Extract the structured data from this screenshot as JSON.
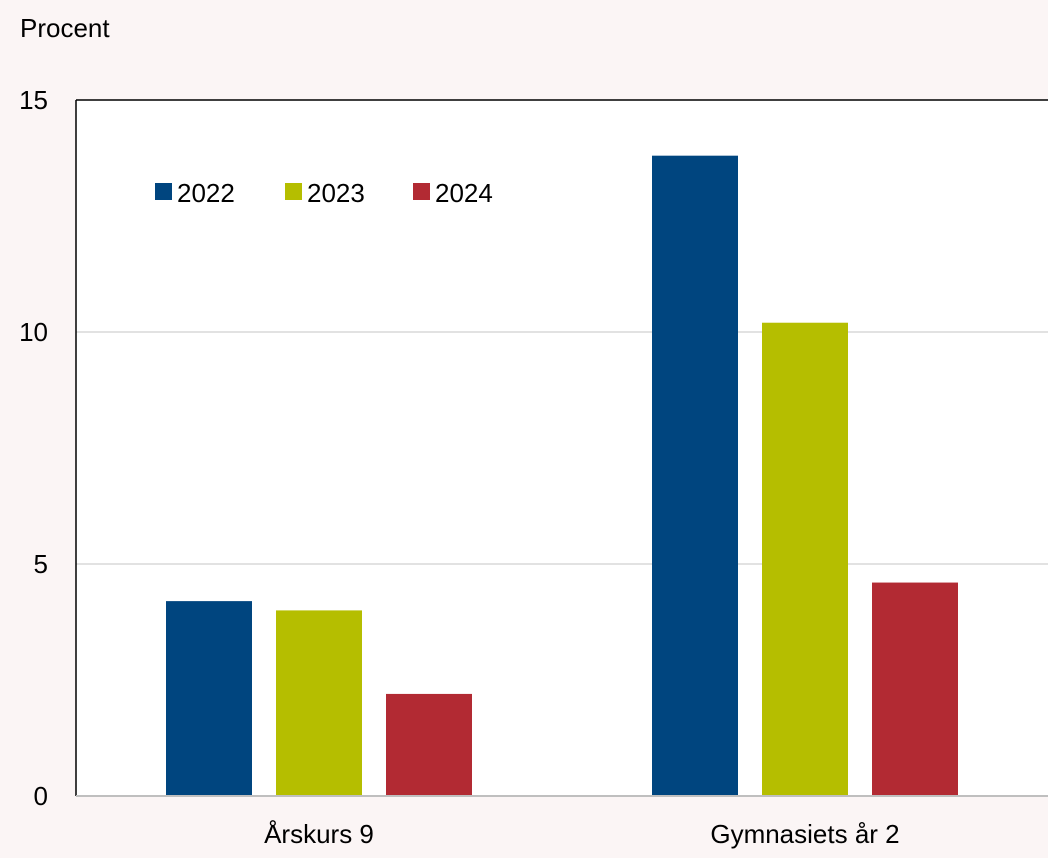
{
  "chart_data": {
    "type": "bar",
    "ylabel": "Procent",
    "categories": [
      "Årskurs 9",
      "Gymnasiets år 2"
    ],
    "series": [
      {
        "name": "2022",
        "color": "#00457f",
        "values": [
          4.2,
          13.8
        ]
      },
      {
        "name": "2023",
        "color": "#b5be00",
        "values": [
          4.0,
          10.2
        ]
      },
      {
        "name": "2024",
        "color": "#b22a33",
        "values": [
          2.2,
          4.6
        ]
      }
    ],
    "ylim": [
      0,
      15
    ],
    "yticks": [
      0,
      5,
      10,
      15
    ],
    "grid": true,
    "legend_position": "top-left"
  },
  "colors": {
    "background": "#fbf5f5",
    "plot_background": "#ffffff",
    "gridline": "#d9d9d9",
    "axis": "#000000"
  }
}
